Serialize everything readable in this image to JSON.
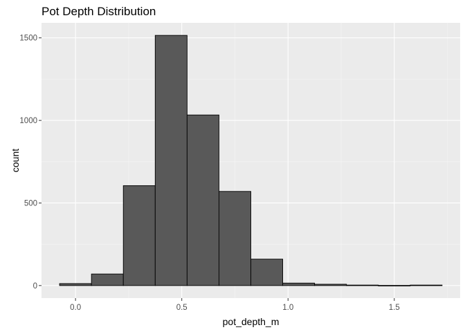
{
  "chart_data": {
    "type": "bar",
    "title": "Pot Depth Distribution",
    "xlabel": "pot_depth_m",
    "ylabel": "count",
    "bin_width": 0.15,
    "bins": [
      {
        "x_min": -0.075,
        "x_max": 0.075,
        "count": 12
      },
      {
        "x_min": 0.075,
        "x_max": 0.225,
        "count": 70
      },
      {
        "x_min": 0.225,
        "x_max": 0.375,
        "count": 605
      },
      {
        "x_min": 0.375,
        "x_max": 0.525,
        "count": 1515
      },
      {
        "x_min": 0.525,
        "x_max": 0.675,
        "count": 1033
      },
      {
        "x_min": 0.675,
        "x_max": 0.825,
        "count": 570
      },
      {
        "x_min": 0.825,
        "x_max": 0.975,
        "count": 160
      },
      {
        "x_min": 0.975,
        "x_max": 1.125,
        "count": 15
      },
      {
        "x_min": 1.125,
        "x_max": 1.275,
        "count": 8
      },
      {
        "x_min": 1.275,
        "x_max": 1.425,
        "count": 3
      },
      {
        "x_min": 1.425,
        "x_max": 1.575,
        "count": 1
      },
      {
        "x_min": 1.575,
        "x_max": 1.725,
        "count": 3
      }
    ],
    "xlim": [
      -0.16,
      1.81
    ],
    "ylim": [
      -76,
      1591
    ],
    "x_ticks": [
      {
        "value": 0.0,
        "label": "0.0"
      },
      {
        "value": 0.5,
        "label": "0.5"
      },
      {
        "value": 1.0,
        "label": "1.0"
      },
      {
        "value": 1.5,
        "label": "1.5"
      }
    ],
    "y_ticks": [
      {
        "value": 0,
        "label": "0"
      },
      {
        "value": 500,
        "label": "500"
      },
      {
        "value": 1000,
        "label": "1000"
      },
      {
        "value": 1500,
        "label": "1500"
      }
    ],
    "grid": true,
    "colors": {
      "panel_background": "#ebebeb",
      "grid_major": "#ffffff",
      "grid_minor": "#f5f5f5",
      "bar_fill": "#595959",
      "bar_outline": "#000000",
      "tick_label": "#4d4d4d"
    }
  }
}
